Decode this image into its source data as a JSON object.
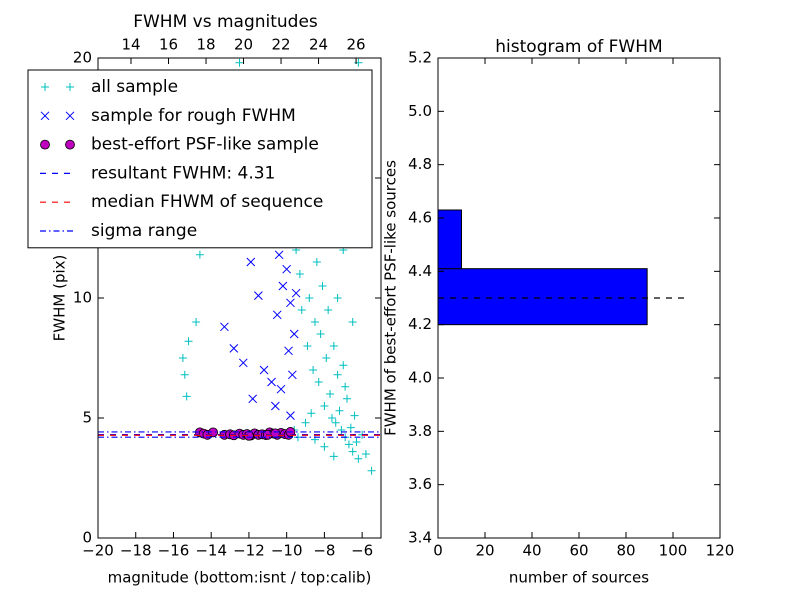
{
  "chart_data": [
    {
      "type": "scatter",
      "title": "FWHM vs magnitudes",
      "xlabel": "magnitude (bottom:isnt / top:calib)",
      "ylabel": "FWHM (pix)",
      "xlim": [
        -20,
        -5
      ],
      "xticks": [
        {
          "value": -20,
          "label": "−20"
        },
        {
          "value": -18,
          "label": "−18"
        },
        {
          "value": -16,
          "label": "−16"
        },
        {
          "value": -14,
          "label": "−14"
        },
        {
          "value": -12,
          "label": "−12"
        },
        {
          "value": -10,
          "label": "−10"
        },
        {
          "value": -8,
          "label": "−8"
        },
        {
          "value": -6,
          "label": "−6"
        }
      ],
      "x2lim": [
        12.24,
        27.33
      ],
      "x2ticks": [
        14,
        16,
        18,
        20,
        22,
        24,
        26
      ],
      "ylim": [
        0,
        20
      ],
      "yticks": [
        0,
        5,
        10,
        15,
        20
      ],
      "legend": "upper left",
      "series": [
        {
          "name": "all sample",
          "marker": "+",
          "color": "#00bfbf",
          "x": [
            -15.6,
            -15.5,
            -15.4,
            -15.3,
            -15.2,
            -14.8,
            -14.6,
            -12.5,
            -10,
            -9.8,
            -9.5,
            -9.3,
            -9.2,
            -9,
            -8.9,
            -8.8,
            -8.7,
            -8.6,
            -8.5,
            -8.4,
            -8.3,
            -8.2,
            -8.1,
            -8.0,
            -7.9,
            -7.8,
            -7.7,
            -7.6,
            -7.5,
            -7.4,
            -7.3,
            -7.2,
            -7.1,
            -7.0,
            -6.9,
            -6.8,
            -6.7,
            -6.6,
            -6.5,
            -6.4,
            -6.3,
            -6.2,
            -6.0,
            -5.8,
            -5.5,
            -9.6,
            -9.4,
            -9.0,
            -8.5,
            -8.0,
            -7.5,
            -9.7,
            -8.3,
            -7.8,
            -6.2,
            -7,
            -7.3,
            -6.5,
            -6.9,
            -8.7
          ],
          "values": [
            12.5,
            7.5,
            6.8,
            5.9,
            8.2,
            9.0,
            11.8,
            19.8,
            14,
            13,
            12,
            11,
            9.5,
            15,
            8,
            10,
            12.5,
            7,
            9,
            11.5,
            6.5,
            8.5,
            10.5,
            5.5,
            7.5,
            9.5,
            6,
            5,
            8,
            4.8,
            6.8,
            5.3,
            4.5,
            7.2,
            4.2,
            5.8,
            3.9,
            4.6,
            3.6,
            5.1,
            4.0,
            3.3,
            4.3,
            3.5,
            2.8,
            4.5,
            4.2,
            4.8,
            4.1,
            3.8,
            3.4,
            16,
            16.5,
            13.5,
            19.8,
            12,
            10,
            9,
            6.3,
            5.2
          ]
        },
        {
          "name": "sample for rough FWHM",
          "marker": "x",
          "color": "#0000ff",
          "x": [
            -12.5,
            -11.9,
            -11.5,
            -13.3,
            -12.8,
            -12.3,
            -11.2,
            -10.8,
            -10.5,
            -10.2,
            -10,
            -9.8,
            -9.6,
            -9.9,
            -10.3,
            -10.6,
            -9.7,
            -9.5,
            -11.8,
            -12.1,
            -10.9,
            -9.8,
            -10.4
          ],
          "values": [
            12.7,
            11.5,
            10.1,
            8.8,
            7.9,
            7.3,
            7.0,
            6.5,
            9.3,
            10.5,
            11.2,
            9.8,
            8.5,
            7.8,
            6.2,
            5.5,
            6.8,
            10.2,
            5.8,
            12.3,
            12.6,
            5.1,
            11.8
          ]
        },
        {
          "name": "best-effort PSF-like sample",
          "marker": "o",
          "color": "#bf00bf",
          "x": [
            -14.6,
            -14.4,
            -14.2,
            -13.9,
            -13.3,
            -13.0,
            -12.8,
            -12.5,
            -12.3,
            -12.1,
            -11.9,
            -11.7,
            -11.5,
            -11.3,
            -11.1,
            -10.9,
            -10.7,
            -10.5,
            -10.3,
            -10.1,
            -9.9,
            -9.8,
            -11.0,
            -12.0,
            -10.6
          ],
          "values": [
            4.4,
            4.35,
            4.3,
            4.4,
            4.3,
            4.32,
            4.28,
            4.35,
            4.3,
            4.33,
            4.27,
            4.36,
            4.3,
            4.32,
            4.29,
            4.4,
            4.35,
            4.3,
            4.38,
            4.33,
            4.3,
            4.42,
            4.3,
            4.26,
            4.36
          ]
        },
        {
          "name": "resultant FWHM: 4.31",
          "marker": "--",
          "color": "#0000ff",
          "values": [
            4.31
          ]
        },
        {
          "name": "median FHWM of sequence",
          "marker": "--",
          "color": "#ff0000",
          "values": [
            4.28
          ]
        },
        {
          "name": "sigma range",
          "marker": "-.",
          "color": "#0000ff",
          "values": [
            4.2,
            4.42
          ]
        }
      ]
    },
    {
      "type": "histogram",
      "orientation": "horizontal",
      "title": "histogram of FWHM",
      "xlabel": "number of sources",
      "ylabel": "FWHM of best-effort PSF-like sources",
      "bins": [
        4.2,
        4.41,
        4.63
      ],
      "values": [
        89,
        10
      ],
      "color": "#0000ff",
      "xlim": [
        0,
        120
      ],
      "xticks": [
        0,
        20,
        40,
        60,
        80,
        100,
        120
      ],
      "ylim": [
        3.4,
        5.2
      ],
      "yticks": [
        3.4,
        3.6,
        3.8,
        {
          "value": 4,
          "label": "4.0"
        },
        4.2,
        4.4,
        4.6,
        4.8,
        {
          "value": 5,
          "label": "5.0"
        },
        5.2
      ],
      "reference_line": {
        "y": 4.3,
        "xmax": 107,
        "color": "#000000"
      }
    }
  ]
}
